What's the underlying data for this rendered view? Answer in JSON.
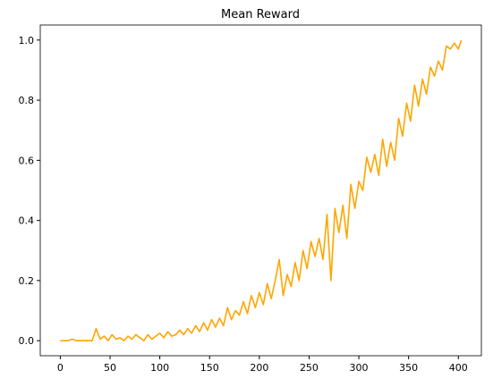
{
  "chart_data": {
    "type": "line",
    "title": "Mean Reward",
    "x": [
      0,
      4,
      8,
      12,
      16,
      20,
      24,
      28,
      32,
      36,
      40,
      44,
      48,
      52,
      56,
      60,
      64,
      68,
      72,
      76,
      80,
      84,
      88,
      92,
      96,
      100,
      104,
      108,
      112,
      116,
      120,
      124,
      128,
      132,
      136,
      140,
      144,
      148,
      152,
      156,
      160,
      164,
      168,
      172,
      176,
      180,
      184,
      188,
      192,
      196,
      200,
      204,
      208,
      212,
      216,
      220,
      224,
      228,
      232,
      236,
      240,
      244,
      248,
      252,
      256,
      260,
      264,
      268,
      272,
      276,
      280,
      284,
      288,
      292,
      296,
      300,
      304,
      308,
      312,
      316,
      320,
      324,
      328,
      332,
      336,
      340,
      344,
      348,
      352,
      356,
      360,
      364,
      368,
      372,
      376,
      380,
      384,
      388,
      392,
      396,
      400,
      403
    ],
    "series": [
      {
        "name": "Mean Reward",
        "color": "#ffa500",
        "values": [
          0,
          0,
          0,
          0.005,
          0,
          0,
          0,
          0,
          0,
          0.04,
          0.005,
          0.015,
          0,
          0.02,
          0.005,
          0.01,
          0,
          0.015,
          0.005,
          0.02,
          0.01,
          0,
          0.02,
          0.005,
          0.015,
          0.025,
          0.01,
          0.03,
          0.015,
          0.02,
          0.035,
          0.02,
          0.04,
          0.025,
          0.05,
          0.03,
          0.06,
          0.035,
          0.07,
          0.045,
          0.075,
          0.05,
          0.11,
          0.07,
          0.1,
          0.085,
          0.13,
          0.09,
          0.15,
          0.11,
          0.16,
          0.12,
          0.19,
          0.14,
          0.2,
          0.27,
          0.15,
          0.22,
          0.18,
          0.26,
          0.2,
          0.3,
          0.24,
          0.33,
          0.28,
          0.34,
          0.27,
          0.42,
          0.2,
          0.44,
          0.36,
          0.45,
          0.34,
          0.52,
          0.44,
          0.53,
          0.5,
          0.61,
          0.56,
          0.62,
          0.55,
          0.67,
          0.58,
          0.66,
          0.6,
          0.74,
          0.68,
          0.79,
          0.73,
          0.85,
          0.78,
          0.87,
          0.82,
          0.91,
          0.88,
          0.93,
          0.9,
          0.98,
          0.97,
          0.99,
          0.97,
          1.0
        ]
      }
    ],
    "xlim": [
      -20.15,
      423.15
    ],
    "xticks": [
      0,
      50,
      100,
      150,
      200,
      250,
      300,
      350,
      400
    ],
    "ylim": [
      -0.05,
      1.05
    ],
    "yticks": [
      {
        "value": 0,
        "label": "0.0"
      },
      0.2,
      0.4,
      0.6,
      0.8,
      {
        "value": 1,
        "label": "1.0"
      }
    ]
  }
}
